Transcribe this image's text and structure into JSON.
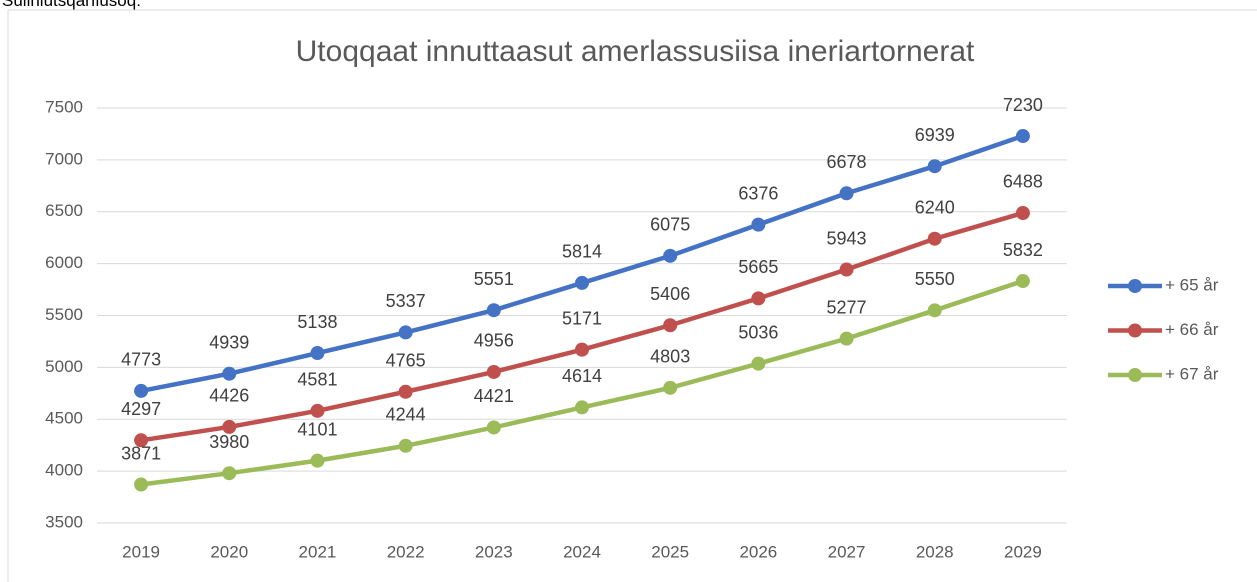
{
  "header": {
    "text": "Suliniutsqarfiusoq:"
  },
  "chart_data": {
    "type": "line",
    "title": "Utoqqaat innuttaasut amerlassusiisa ineriartornerat",
    "categories": [
      "2019",
      "2020",
      "2021",
      "2022",
      "2023",
      "2024",
      "2025",
      "2026",
      "2027",
      "2028",
      "2029"
    ],
    "series": [
      {
        "name": "+ 65 år",
        "color": "#4472c4",
        "values": [
          4773,
          4939,
          5138,
          5337,
          5551,
          5814,
          6075,
          6376,
          6678,
          6939,
          7230
        ]
      },
      {
        "name": "+ 66 år",
        "color": "#c0504d",
        "values": [
          4297,
          4426,
          4581,
          4765,
          4956,
          5171,
          5406,
          5665,
          5943,
          6240,
          6488
        ]
      },
      {
        "name": "+ 67 år",
        "color": "#9bbb59",
        "values": [
          3871,
          3980,
          4101,
          4244,
          4421,
          4614,
          4803,
          5036,
          5277,
          5550,
          5832
        ]
      }
    ],
    "ylim": [
      3500,
      7500
    ],
    "yticks": [
      3500,
      4000,
      4500,
      5000,
      5500,
      6000,
      6500,
      7000,
      7500
    ],
    "grid": true,
    "legend": "right"
  }
}
